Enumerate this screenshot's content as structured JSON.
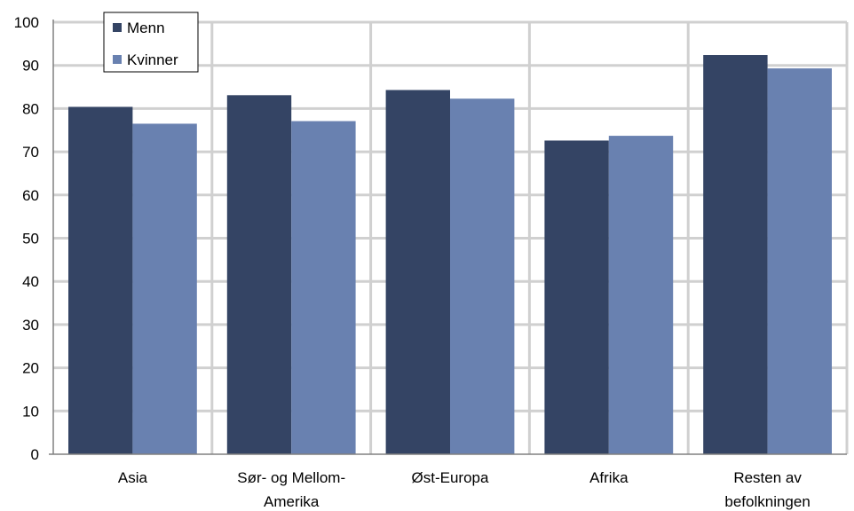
{
  "chart_data": {
    "type": "bar",
    "categories": [
      [
        "Asia"
      ],
      [
        "Sør- og Mellom-",
        "Amerika"
      ],
      [
        "Øst-Europa"
      ],
      [
        "Afrika"
      ],
      [
        "Resten av",
        "befolkningen"
      ]
    ],
    "series": [
      {
        "name": "Menn",
        "color": "#344464",
        "values": [
          80.4,
          83.1,
          84.3,
          72.6,
          92.4
        ]
      },
      {
        "name": "Kvinner",
        "color": "#6981b0",
        "values": [
          76.5,
          77.1,
          82.3,
          73.7,
          89.3
        ]
      }
    ],
    "yticks": [
      "0",
      "10",
      "20",
      "30",
      "40",
      "50",
      "60",
      "70",
      "80",
      "90",
      "100"
    ],
    "ylim": [
      0,
      100
    ],
    "grid": true,
    "legend_position": "top-left",
    "gridline_color": "#d0d0d0",
    "axis_color": "#808080"
  }
}
